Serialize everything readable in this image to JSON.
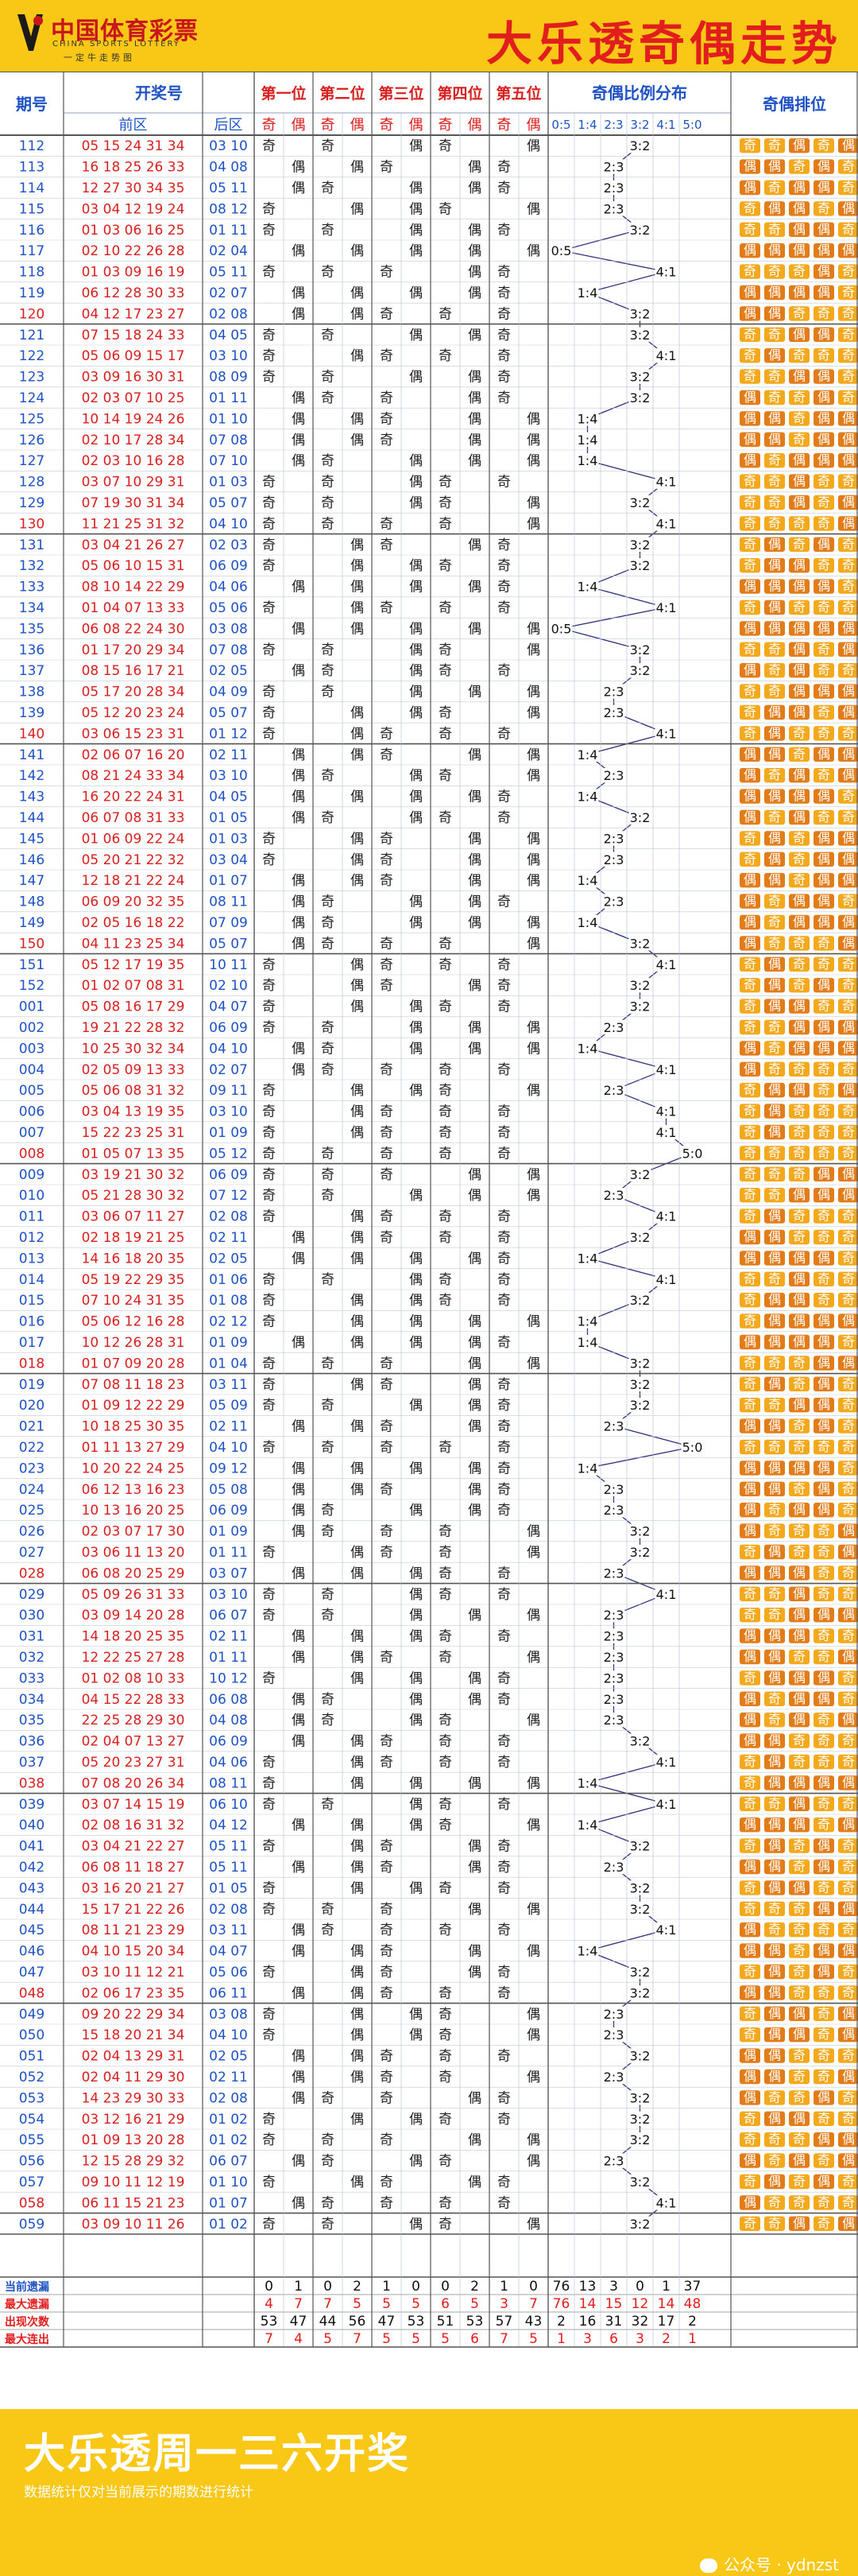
{
  "header": {
    "logo_cn": "中国体育彩票",
    "logo_en": "CHINA SPORTS LOTTERY",
    "logo_slogan": "一定牛走势图",
    "title": "大乐透奇偶走势"
  },
  "footer": {
    "title": "大乐透周一三六开奖",
    "note": "数据统计仅对当前展示的期数进行统计",
    "watermark": "公众号 · ydnzst"
  },
  "chart_data": {
    "type": "table",
    "columns": {
      "period": "期号",
      "draw": "开奖号",
      "front": "前区",
      "back": "后区",
      "positions": [
        "第一位",
        "第二位",
        "第三位",
        "第四位",
        "第五位"
      ],
      "odd": "奇",
      "even": "偶",
      "ratio_group": "奇偶比例分布",
      "ratios": [
        "0:5",
        "1:4",
        "2:3",
        "3:2",
        "4:1",
        "5:0"
      ],
      "arrangement": "奇偶排位"
    },
    "rows": [
      [
        "112",
        "05 15 24 31 34",
        "03 10"
      ],
      [
        "113",
        "16 18 25 26 33",
        "04 08"
      ],
      [
        "114",
        "12 27 30 34 35",
        "05 11"
      ],
      [
        "115",
        "03 04 12 19 24",
        "08 12"
      ],
      [
        "116",
        "01 03 06 16 25",
        "01 11"
      ],
      [
        "117",
        "02 10 22 26 28",
        "02 04"
      ],
      [
        "118",
        "01 03 09 16 19",
        "05 11"
      ],
      [
        "119",
        "06 12 28 30 33",
        "02 07"
      ],
      [
        "120",
        "04 12 17 23 27",
        "02 08"
      ],
      [
        "121",
        "07 15 18 24 33",
        "04 05"
      ],
      [
        "122",
        "05 06 09 15 17",
        "03 10"
      ],
      [
        "123",
        "03 09 16 30 31",
        "08 09"
      ],
      [
        "124",
        "02 03 07 10 25",
        "01 11"
      ],
      [
        "125",
        "10 14 19 24 26",
        "01 10"
      ],
      [
        "126",
        "02 10 17 28 34",
        "07 08"
      ],
      [
        "127",
        "02 03 10 16 28",
        "07 10"
      ],
      [
        "128",
        "03 07 10 29 31",
        "01 03"
      ],
      [
        "129",
        "07 19 30 31 34",
        "05 07"
      ],
      [
        "130",
        "11 21 25 31 32",
        "04 10"
      ],
      [
        "131",
        "03 04 21 26 27",
        "02 03"
      ],
      [
        "132",
        "05 06 10 15 31",
        "06 09"
      ],
      [
        "133",
        "08 10 14 22 29",
        "04 06"
      ],
      [
        "134",
        "01 04 07 13 33",
        "05 06"
      ],
      [
        "135",
        "06 08 22 24 30",
        "03 08"
      ],
      [
        "136",
        "01 17 20 29 34",
        "07 08"
      ],
      [
        "137",
        "08 15 16 17 21",
        "02 05"
      ],
      [
        "138",
        "05 17 20 28 34",
        "04 09"
      ],
      [
        "139",
        "05 12 20 23 24",
        "05 07"
      ],
      [
        "140",
        "03 06 15 23 31",
        "01 12"
      ],
      [
        "141",
        "02 06 07 16 20",
        "02 11"
      ],
      [
        "142",
        "08 21 24 33 34",
        "03 10"
      ],
      [
        "143",
        "16 20 22 24 31",
        "04 05"
      ],
      [
        "144",
        "06 07 08 31 33",
        "01 05"
      ],
      [
        "145",
        "01 06 09 22 24",
        "01 03"
      ],
      [
        "146",
        "05 20 21 22 32",
        "03 04"
      ],
      [
        "147",
        "12 18 21 22 24",
        "01 07"
      ],
      [
        "148",
        "06 09 20 32 35",
        "08 11"
      ],
      [
        "149",
        "02 05 16 18 22",
        "07 09"
      ],
      [
        "150",
        "04 11 23 25 34",
        "05 07"
      ],
      [
        "151",
        "05 12 17 19 35",
        "10 11"
      ],
      [
        "152",
        "01 02 07 08 31",
        "02 10"
      ],
      [
        "001",
        "05 08 16 17 29",
        "04 07"
      ],
      [
        "002",
        "19 21 22 28 32",
        "06 09"
      ],
      [
        "003",
        "10 25 30 32 34",
        "04 10"
      ],
      [
        "004",
        "02 05 09 13 33",
        "02 07"
      ],
      [
        "005",
        "05 06 08 31 32",
        "09 11"
      ],
      [
        "006",
        "03 04 13 19 35",
        "03 10"
      ],
      [
        "007",
        "15 22 23 25 31",
        "01 09"
      ],
      [
        "008",
        "01 05 07 13 35",
        "05 12"
      ],
      [
        "009",
        "03 19 21 30 32",
        "06 09"
      ],
      [
        "010",
        "05 21 28 30 32",
        "07 12"
      ],
      [
        "011",
        "03 06 07 11 27",
        "02 08"
      ],
      [
        "012",
        "02 18 19 21 25",
        "02 11"
      ],
      [
        "013",
        "14 16 18 20 35",
        "02 05"
      ],
      [
        "014",
        "05 19 22 29 35",
        "01 06"
      ],
      [
        "015",
        "07 10 24 31 35",
        "01 08"
      ],
      [
        "016",
        "05 06 12 16 28",
        "02 12"
      ],
      [
        "017",
        "10 12 26 28 31",
        "01 09"
      ],
      [
        "018",
        "01 07 09 20 28",
        "01 04"
      ],
      [
        "019",
        "07 08 11 18 23",
        "03 11"
      ],
      [
        "020",
        "01 09 12 22 29",
        "05 09"
      ],
      [
        "021",
        "10 18 25 30 35",
        "02 11"
      ],
      [
        "022",
        "01 11 13 27 29",
        "04 10"
      ],
      [
        "023",
        "10 20 22 24 25",
        "09 12"
      ],
      [
        "024",
        "06 12 13 16 23",
        "05 08"
      ],
      [
        "025",
        "10 13 16 20 25",
        "06 09"
      ],
      [
        "026",
        "02 03 07 17 30",
        "01 09"
      ],
      [
        "027",
        "03 06 11 13 20",
        "01 11"
      ],
      [
        "028",
        "06 08 20 25 29",
        "03 07"
      ],
      [
        "029",
        "05 09 26 31 33",
        "03 10"
      ],
      [
        "030",
        "03 09 14 20 28",
        "06 07"
      ],
      [
        "031",
        "14 18 20 25 35",
        "02 11"
      ],
      [
        "032",
        "12 22 25 27 28",
        "01 11"
      ],
      [
        "033",
        "01 02 08 10 33",
        "10 12"
      ],
      [
        "034",
        "04 15 22 28 33",
        "06 08"
      ],
      [
        "035",
        "22 25 28 29 30",
        "04 08"
      ],
      [
        "036",
        "02 04 07 13 27",
        "06 09"
      ],
      [
        "037",
        "05 20 23 27 31",
        "04 06"
      ],
      [
        "038",
        "07 08 20 26 34",
        "08 11"
      ],
      [
        "039",
        "03 07 14 15 19",
        "06 10"
      ],
      [
        "040",
        "02 08 16 31 32",
        "04 12"
      ],
      [
        "041",
        "03 04 21 22 27",
        "05 11"
      ],
      [
        "042",
        "06 08 11 18 27",
        "05 11"
      ],
      [
        "043",
        "03 16 20 21 27",
        "01 05"
      ],
      [
        "044",
        "15 17 21 22 26",
        "02 08"
      ],
      [
        "045",
        "08 11 21 23 29",
        "03 11"
      ],
      [
        "046",
        "04 10 15 20 34",
        "04 07"
      ],
      [
        "047",
        "03 10 11 12 21",
        "05 06"
      ],
      [
        "048",
        "02 06 17 23 35",
        "06 11"
      ],
      [
        "049",
        "09 20 22 29 34",
        "03 08"
      ],
      [
        "050",
        "15 18 20 21 34",
        "04 10"
      ],
      [
        "051",
        "02 04 13 29 31",
        "02 05"
      ],
      [
        "052",
        "02 04 11 29 30",
        "02 11"
      ],
      [
        "053",
        "14 23 29 30 33",
        "02 08"
      ],
      [
        "054",
        "03 12 16 21 29",
        "01 02"
      ],
      [
        "055",
        "01 09 13 20 28",
        "01 02"
      ],
      [
        "056",
        "12 15 28 29 32",
        "06 07"
      ],
      [
        "057",
        "09 10 11 12 19",
        "01 10"
      ],
      [
        "058",
        "06 11 15 21 23",
        "01 07"
      ],
      [
        "059",
        "03 09 10 11 26",
        "01 02"
      ]
    ],
    "stats": [
      {
        "label": "当前遗漏",
        "values": [
          0,
          1,
          0,
          2,
          1,
          0,
          0,
          2,
          1,
          0,
          76,
          13,
          3,
          0,
          1,
          37
        ]
      },
      {
        "label": "最大遗漏",
        "values": [
          4,
          7,
          7,
          5,
          5,
          5,
          6,
          5,
          3,
          7,
          76,
          14,
          15,
          12,
          14,
          48
        ]
      },
      {
        "label": "出现次数",
        "values": [
          53,
          47,
          44,
          56,
          47,
          53,
          51,
          53,
          57,
          43,
          2,
          16,
          31,
          32,
          17,
          2
        ]
      },
      {
        "label": "最大连出",
        "values": [
          7,
          4,
          5,
          7,
          5,
          5,
          5,
          6,
          7,
          5,
          1,
          3,
          6,
          3,
          2,
          1
        ]
      }
    ],
    "colors": {
      "header_bg": "#f9c716",
      "header_title": "#e11d1d",
      "period_blue": "#1f52c4",
      "front_red": "#d81f1f",
      "back_blue": "#1f52c4",
      "odd_pill": "#f4a81c",
      "even_pill": "#e27c18",
      "group_line": "#2f2f7a",
      "stats_red": "#e11d1d"
    }
  }
}
